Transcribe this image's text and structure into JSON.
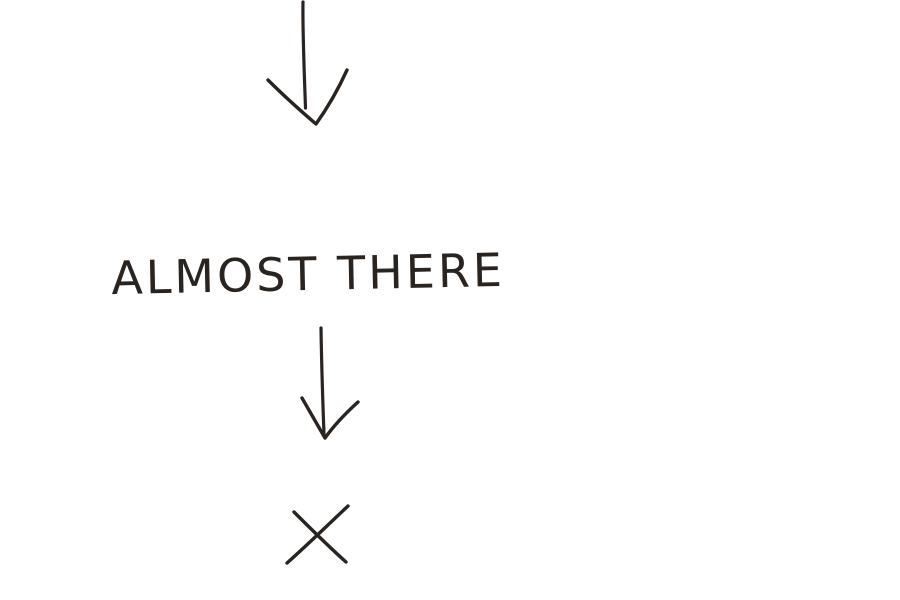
{
  "diagram": {
    "label": "ALMOST THERE",
    "mark": "X",
    "ink_color": "#2a2420",
    "background_color": "#ffffff",
    "icons": [
      "arrow-down-icon",
      "arrow-down-icon",
      "x-mark-icon"
    ]
  }
}
